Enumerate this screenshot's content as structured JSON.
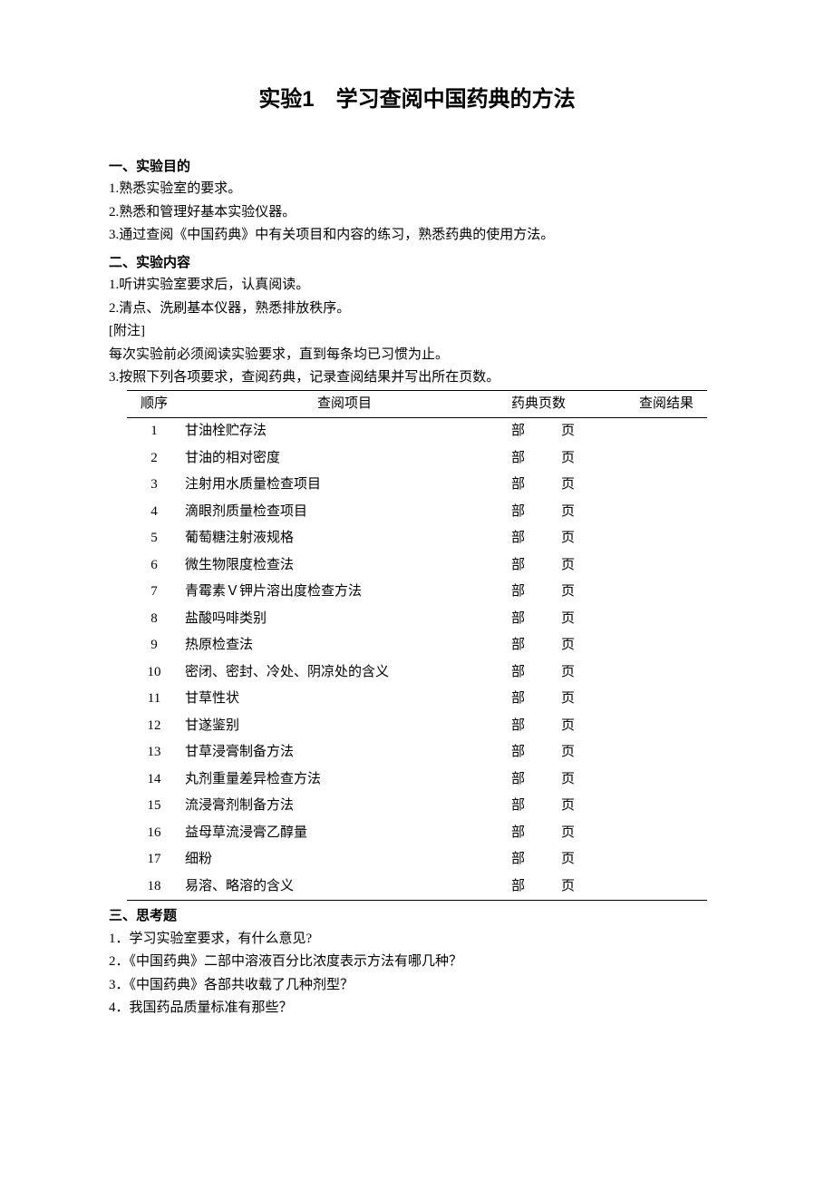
{
  "title": "实验1　学习查阅中国药典的方法",
  "section1": {
    "heading": "一、实验目的",
    "items": [
      "1.熟悉实验室的要求。",
      "2.熟悉和管理好基本实验仪器。",
      "3.通过查阅《中国药典》中有关项目和内容的练习，熟悉药典的使用方法。"
    ]
  },
  "section2": {
    "heading": "二、实验内容",
    "items": [
      "1.听讲实验室要求后，认真阅读。",
      "2.清点、洗刷基本仪器，熟悉排放秩序。"
    ],
    "note_label": "[附注]",
    "note_text": "每次实验前必须阅读实验要求，直到每条均已习惯为止。",
    "item3": "3.按照下列各项要求，查阅药典，记录查阅结果并写出所在页数。"
  },
  "table": {
    "headers": {
      "seq": "顺序",
      "item": "查阅项目",
      "pages": "药典页数",
      "result": "查阅结果"
    },
    "page_unit_bu": "部",
    "page_unit_ye": "页",
    "rows": [
      {
        "seq": "1",
        "item": "甘油栓贮存法"
      },
      {
        "seq": "2",
        "item": "甘油的相对密度"
      },
      {
        "seq": "3",
        "item": "注射用水质量检查项目"
      },
      {
        "seq": "4",
        "item": "滴眼剂质量检查项目"
      },
      {
        "seq": "5",
        "item": "葡萄糖注射液规格"
      },
      {
        "seq": "6",
        "item": "微生物限度检查法"
      },
      {
        "seq": "7",
        "item": "青霉素Ｖ钾片溶出度检查方法"
      },
      {
        "seq": "8",
        "item": "盐酸吗啡类别"
      },
      {
        "seq": "9",
        "item": "热原检查法"
      },
      {
        "seq": "10",
        "item": "密闭、密封、冷处、阴凉处的含义"
      },
      {
        "seq": "11",
        "item": "甘草性状"
      },
      {
        "seq": "12",
        "item": "甘遂鉴别"
      },
      {
        "seq": "13",
        "item": "甘草浸膏制备方法"
      },
      {
        "seq": "14",
        "item": "丸剂重量差异检查方法"
      },
      {
        "seq": "15",
        "item": "流浸膏剂制备方法"
      },
      {
        "seq": "16",
        "item": "益母草流浸膏乙醇量"
      },
      {
        "seq": "17",
        "item": "细粉"
      },
      {
        "seq": "18",
        "item": "易溶、略溶的含义"
      }
    ]
  },
  "section3": {
    "heading": "三、思考题",
    "items": [
      "1．学习实验室要求，有什么意见?",
      "2．《中国药典》二部中溶液百分比浓度表示方法有哪几种？",
      "3．《中国药典》各部共收载了几种剂型？",
      "4．我国药品质量标准有那些？"
    ]
  }
}
